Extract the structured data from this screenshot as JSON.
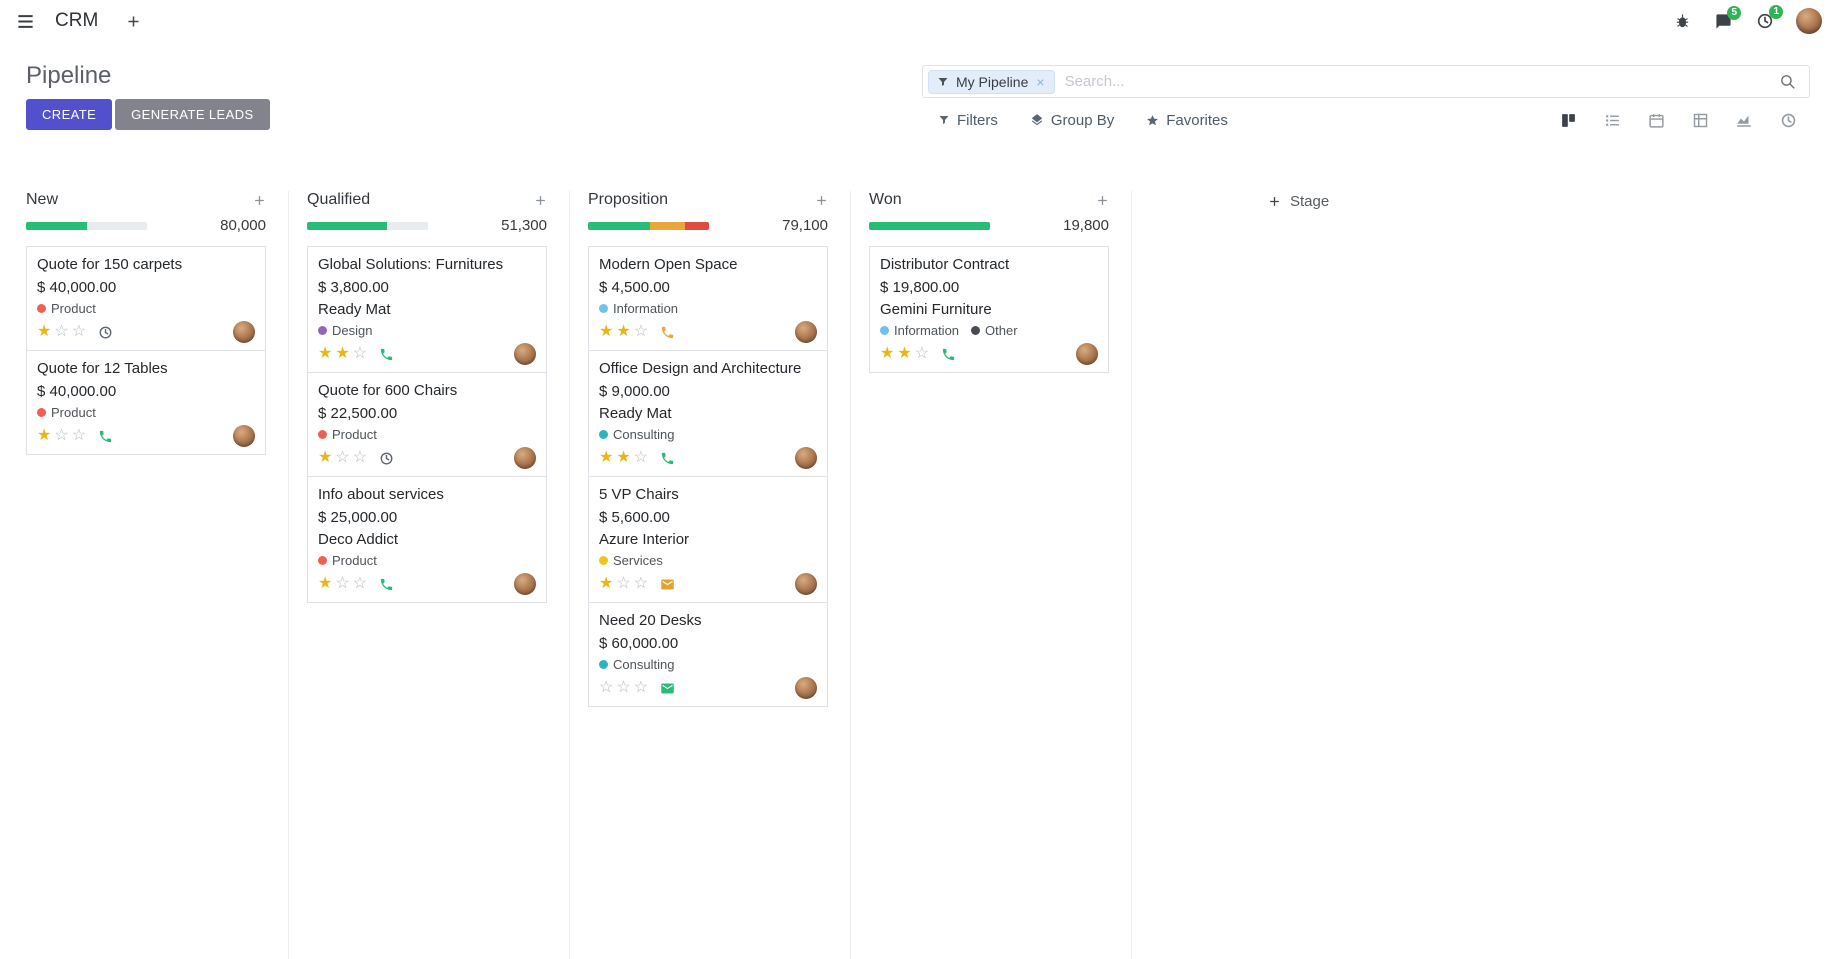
{
  "app": {
    "name": "CRM",
    "nav": {
      "messages_badge": "5",
      "activities_badge": "1"
    }
  },
  "control_panel": {
    "title": "Pipeline",
    "buttons": {
      "create": "CREATE",
      "generate_leads": "GENERATE LEADS"
    },
    "search": {
      "facet_label": "My Pipeline",
      "placeholder": "Search...",
      "remove": "×"
    },
    "menus": {
      "filters": "Filters",
      "group_by": "Group By",
      "favorites": "Favorites"
    }
  },
  "colors": {
    "primary": "#5350ce",
    "secondary": "#83838e",
    "success": "#27bd76",
    "warning": "#e9a63a",
    "danger": "#de4c41",
    "star_active": "#eeb414",
    "badge": "#30b553"
  },
  "kanban": {
    "add_stage": "Stage",
    "columns": [
      {
        "name": "New",
        "amount": "80,000",
        "progress": [
          {
            "color": "success",
            "pct": 50
          },
          {
            "color": "muted",
            "pct": 50
          }
        ],
        "cards": [
          {
            "title": "Quote for 150 carpets",
            "amount": "$ 40,000.00",
            "tags": [
              {
                "label": "Product",
                "color": "#f06050"
              }
            ],
            "stars": 1,
            "activity": {
              "icon": "clock",
              "color": "#5c646b"
            }
          },
          {
            "title": "Quote for 12 Tables",
            "amount": "$ 40,000.00",
            "tags": [
              {
                "label": "Product",
                "color": "#f06050"
              }
            ],
            "stars": 1,
            "activity": {
              "icon": "phone",
              "color": "#27bd76"
            }
          }
        ]
      },
      {
        "name": "Qualified",
        "amount": "51,300",
        "progress": [
          {
            "color": "success",
            "pct": 66
          },
          {
            "color": "muted",
            "pct": 34
          }
        ],
        "cards": [
          {
            "title": "Global Solutions: Furnitures",
            "amount": "$ 3,800.00",
            "partner": "Ready Mat",
            "tags": [
              {
                "label": "Design",
                "color": "#9365b8"
              }
            ],
            "stars": 2,
            "activity": {
              "icon": "phone",
              "color": "#27bd76"
            }
          },
          {
            "title": "Quote for 600 Chairs",
            "amount": "$ 22,500.00",
            "tags": [
              {
                "label": "Product",
                "color": "#f06050"
              }
            ],
            "stars": 1,
            "activity": {
              "icon": "clock",
              "color": "#5c646b"
            }
          },
          {
            "title": "Info about services",
            "amount": "$ 25,000.00",
            "partner": "Deco Addict",
            "tags": [
              {
                "label": "Product",
                "color": "#f06050"
              }
            ],
            "stars": 1,
            "activity": {
              "icon": "phone",
              "color": "#27bd76"
            }
          }
        ]
      },
      {
        "name": "Proposition",
        "amount": "79,100",
        "progress": [
          {
            "color": "success",
            "pct": 51
          },
          {
            "color": "warning",
            "pct": 29
          },
          {
            "color": "danger",
            "pct": 20
          }
        ],
        "cards": [
          {
            "title": "Modern Open Space",
            "amount": "$ 4,500.00",
            "tags": [
              {
                "label": "Information",
                "color": "#6cc1ed"
              }
            ],
            "stars": 2,
            "activity": {
              "icon": "phone",
              "color": "#e9a63a"
            }
          },
          {
            "title": "Office Design and Architecture",
            "amount": "$ 9,000.00",
            "partner": "Ready Mat",
            "tags": [
              {
                "label": "Consulting",
                "color": "#2fb3be"
              }
            ],
            "stars": 2,
            "activity": {
              "icon": "phone",
              "color": "#27bd76"
            }
          },
          {
            "title": "5 VP Chairs",
            "amount": "$ 5,600.00",
            "partner": "Azure Interior",
            "tags": [
              {
                "label": "Services",
                "color": "#f0c41b"
              }
            ],
            "stars": 1,
            "activity": {
              "icon": "envelope",
              "color": "#e0a32e"
            }
          },
          {
            "title": "Need 20 Desks",
            "amount": "$ 60,000.00",
            "tags": [
              {
                "label": "Consulting",
                "color": "#2fb3be"
              }
            ],
            "stars": 0,
            "activity": {
              "icon": "envelope",
              "color": "#27bd76"
            }
          }
        ]
      },
      {
        "name": "Won",
        "amount": "19,800",
        "progress": [
          {
            "color": "success",
            "pct": 100
          }
        ],
        "cards": [
          {
            "title": "Distributor Contract",
            "amount": "$ 19,800.00",
            "partner": "Gemini Furniture",
            "tags": [
              {
                "label": "Information",
                "color": "#6cc1ed"
              },
              {
                "label": "Other",
                "color": "#474b54"
              }
            ],
            "stars": 2,
            "activity": {
              "icon": "phone",
              "color": "#27bd76"
            }
          }
        ]
      }
    ]
  }
}
